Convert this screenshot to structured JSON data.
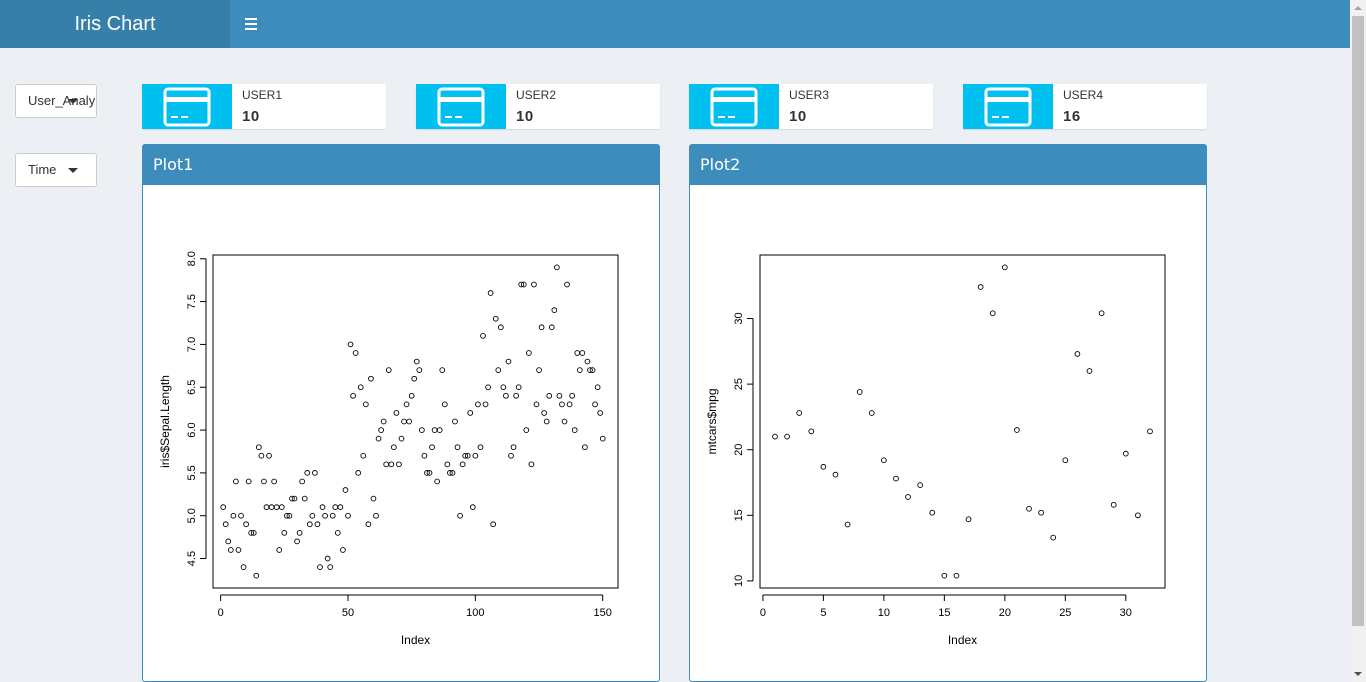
{
  "header": {
    "app_title": "Iris Chart",
    "menu_icon": "hamburger-icon"
  },
  "filters": {
    "dropdown1_value": "User_Analy",
    "dropdown2_value": "Time"
  },
  "colors": {
    "header_bg": "#3c8dbc",
    "logo_bg": "#367fa9",
    "info_icon_bg": "#00c0ef"
  },
  "info_boxes": [
    {
      "icon": "credit-card-icon",
      "label": "USER1",
      "value": "10"
    },
    {
      "icon": "credit-card-icon",
      "label": "USER2",
      "value": "10"
    },
    {
      "icon": "credit-card-icon",
      "label": "USER3",
      "value": "10"
    },
    {
      "icon": "credit-card-icon",
      "label": "USER4",
      "value": "16"
    }
  ],
  "boxes": [
    {
      "title": "Plot1"
    },
    {
      "title": "Plot2"
    }
  ],
  "chart_data": [
    {
      "type": "scatter",
      "title": "",
      "xlabel": "Index",
      "ylabel": "iris$Sepal.Length",
      "xlim": [
        -3,
        156
      ],
      "ylim": [
        4.156,
        8.044
      ],
      "xticks": [
        "0",
        "50",
        "100",
        "150"
      ],
      "xtick_values": [
        0,
        50,
        100,
        150
      ],
      "yticks": [
        "4.5",
        "5.0",
        "5.5",
        "6.0",
        "6.5",
        "7.0",
        "7.5",
        "8.0"
      ],
      "ytick_values": [
        4.5,
        5.0,
        5.5,
        6.0,
        6.5,
        7.0,
        7.5,
        8.0
      ],
      "marker": "open-circle",
      "y": [
        5.1,
        4.9,
        4.7,
        4.6,
        5.0,
        5.4,
        4.6,
        5.0,
        4.4,
        4.9,
        5.4,
        4.8,
        4.8,
        4.3,
        5.8,
        5.7,
        5.4,
        5.1,
        5.7,
        5.1,
        5.4,
        5.1,
        4.6,
        5.1,
        4.8,
        5.0,
        5.0,
        5.2,
        5.2,
        4.7,
        4.8,
        5.4,
        5.2,
        5.5,
        4.9,
        5.0,
        5.5,
        4.9,
        4.4,
        5.1,
        5.0,
        4.5,
        4.4,
        5.0,
        5.1,
        4.8,
        5.1,
        4.6,
        5.3,
        5.0,
        7.0,
        6.4,
        6.9,
        5.5,
        6.5,
        5.7,
        6.3,
        4.9,
        6.6,
        5.2,
        5.0,
        5.9,
        6.0,
        6.1,
        5.6,
        6.7,
        5.6,
        5.8,
        6.2,
        5.6,
        5.9,
        6.1,
        6.3,
        6.1,
        6.4,
        6.6,
        6.8,
        6.7,
        6.0,
        5.7,
        5.5,
        5.5,
        5.8,
        6.0,
        5.4,
        6.0,
        6.7,
        6.3,
        5.6,
        5.5,
        5.5,
        6.1,
        5.8,
        5.0,
        5.6,
        5.7,
        5.7,
        6.2,
        5.1,
        5.7,
        6.3,
        5.8,
        7.1,
        6.3,
        6.5,
        7.6,
        4.9,
        7.3,
        6.7,
        7.2,
        6.5,
        6.4,
        6.8,
        5.7,
        5.8,
        6.4,
        6.5,
        7.7,
        7.7,
        6.0,
        6.9,
        5.6,
        7.7,
        6.3,
        6.7,
        7.2,
        6.2,
        6.1,
        6.4,
        7.2,
        7.4,
        7.9,
        6.4,
        6.3,
        6.1,
        7.7,
        6.3,
        6.4,
        6.0,
        6.9,
        6.7,
        6.9,
        5.8,
        6.8,
        6.7,
        6.7,
        6.3,
        6.5,
        6.2,
        5.9
      ]
    },
    {
      "type": "scatter",
      "title": "",
      "xlabel": "Index",
      "ylabel": "mtcars$mpg",
      "xlim": [
        -0.24,
        33.24
      ],
      "ylim": [
        9.46,
        34.84
      ],
      "xticks": [
        "0",
        "5",
        "10",
        "15",
        "20",
        "25",
        "30"
      ],
      "xtick_values": [
        0,
        5,
        10,
        15,
        20,
        25,
        30
      ],
      "yticks": [
        "10",
        "15",
        "20",
        "25",
        "30"
      ],
      "ytick_values": [
        10,
        15,
        20,
        25,
        30
      ],
      "marker": "open-circle",
      "y": [
        21.0,
        21.0,
        22.8,
        21.4,
        18.7,
        18.1,
        14.3,
        24.4,
        22.8,
        19.2,
        17.8,
        16.4,
        17.3,
        15.2,
        10.4,
        10.4,
        14.7,
        32.4,
        30.4,
        33.9,
        21.5,
        15.5,
        15.2,
        13.3,
        19.2,
        27.3,
        26.0,
        30.4,
        15.8,
        19.7,
        15.0,
        21.4
      ]
    }
  ]
}
